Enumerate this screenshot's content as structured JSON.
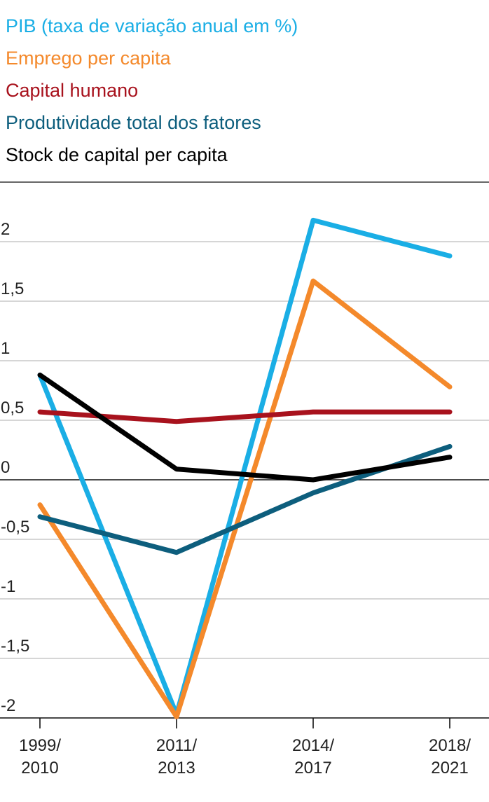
{
  "chart_data": {
    "type": "line",
    "title": "",
    "xlabel": "",
    "ylabel": "",
    "categories": [
      [
        "1999/",
        "2010"
      ],
      [
        "2011/",
        "2013"
      ],
      [
        "2014/",
        "2017"
      ],
      [
        "2018/",
        "2021"
      ]
    ],
    "yticks": [
      {
        "value": 2,
        "label": "2"
      },
      {
        "value": 1.5,
        "label": "1,5"
      },
      {
        "value": 1,
        "label": "1"
      },
      {
        "value": 0.5,
        "label": "0,5"
      },
      {
        "value": 0,
        "label": "0"
      },
      {
        "value": -0.5,
        "label": "-0,5"
      },
      {
        "value": -1,
        "label": "-1"
      },
      {
        "value": -1.5,
        "label": "-1,5"
      },
      {
        "value": -2,
        "label": "-2"
      }
    ],
    "ylim": [
      -2,
      2.5
    ],
    "grid": true,
    "legend_position": "top-left",
    "series": [
      {
        "name": "PIB (taxa de variação anual em %)",
        "color": "#1aaee5",
        "values": [
          0.88,
          -1.97,
          2.18,
          1.88
        ]
      },
      {
        "name": "Emprego per capita",
        "color": "#f4892b",
        "values": [
          -0.21,
          -1.99,
          1.67,
          0.78
        ]
      },
      {
        "name": "Capital humano",
        "color": "#a8121d",
        "values": [
          0.57,
          0.49,
          0.57,
          0.57
        ]
      },
      {
        "name": "Produtividade total dos fatores",
        "color": "#0d5e7d",
        "values": [
          -0.31,
          -0.61,
          -0.11,
          0.28
        ]
      },
      {
        "name": "Stock de capital per capita",
        "color": "#000000",
        "values": [
          0.88,
          0.09,
          0.0,
          0.19
        ]
      }
    ]
  }
}
